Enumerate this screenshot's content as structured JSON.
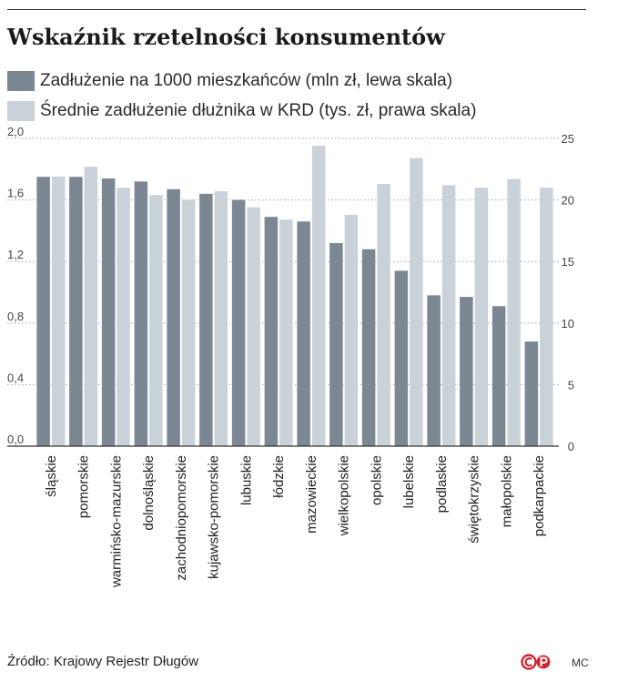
{
  "title": "Wskaźnik rzetelności konsumentów",
  "source": "Źródło: Krajowy Rejestr Długów",
  "author": "MC",
  "brand": "logo",
  "colors": {
    "series1": "#7b8893",
    "series2": "#c9d2d9",
    "grid": "#9aa3aa",
    "axis": "#333333"
  },
  "chart_data": {
    "type": "bar",
    "categories": [
      "śląskie",
      "pomorskie",
      "warmińsko-mazurskie",
      "dolnośląskie",
      "zachodniopomorskie",
      "kujawsko-pomorskie",
      "lubuskie",
      "łódzkie",
      "mazowieckie",
      "wielkopolskie",
      "opolskie",
      "lubelskie",
      "podlaskie",
      "świętokrzyskie",
      "małopolskie",
      "podkarpackie"
    ],
    "series": [
      {
        "name": "Zadłużenie na 1000 mieszkańców (mln zł, lewa skala)",
        "axis": "left",
        "values": [
          1.75,
          1.75,
          1.74,
          1.72,
          1.67,
          1.64,
          1.6,
          1.49,
          1.46,
          1.32,
          1.28,
          1.14,
          0.98,
          0.97,
          0.91,
          0.68
        ]
      },
      {
        "name": "Średnie zadłużenie dłużnika w KRD (tys. zł, prawa skala)",
        "axis": "right",
        "values": [
          21.9,
          22.7,
          21.0,
          20.4,
          20.0,
          20.7,
          19.4,
          18.4,
          24.4,
          18.8,
          21.3,
          23.4,
          21.2,
          21.0,
          21.7,
          21.0
        ]
      }
    ],
    "y_left": {
      "lim": [
        0,
        2.0
      ],
      "ticks": [
        "0,0",
        "0,4",
        "0,8",
        "1,2",
        "1,6",
        "2,0"
      ],
      "values": [
        0,
        0.4,
        0.8,
        1.2,
        1.6,
        2.0
      ]
    },
    "y_right": {
      "lim": [
        0,
        25
      ],
      "ticks": [
        "0",
        "5",
        "10",
        "15",
        "20",
        "25"
      ],
      "values": [
        0,
        5,
        10,
        15,
        20,
        25
      ]
    },
    "grid": "horizontal dotted",
    "legend": "top-left"
  }
}
